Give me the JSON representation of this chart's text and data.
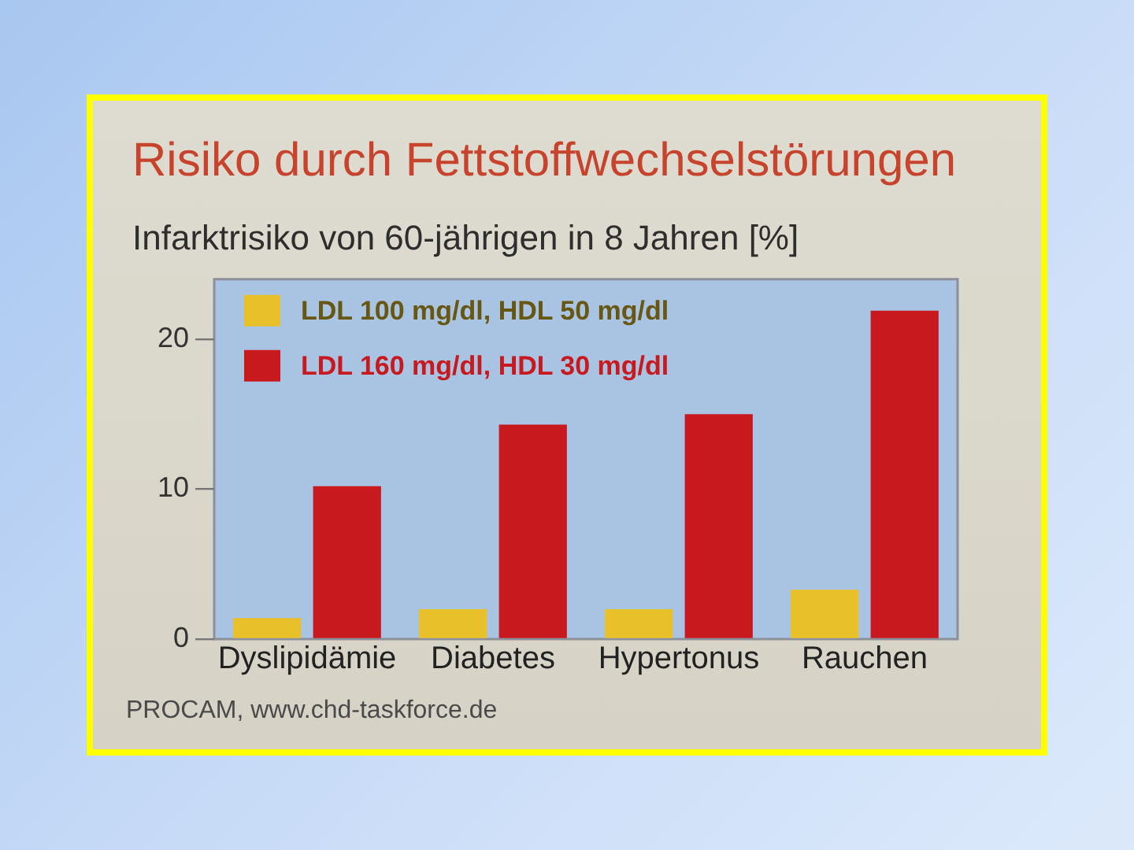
{
  "chart_data": {
    "type": "bar",
    "title": "Risiko durch Fettstoffwechselstörungen",
    "subtitle": "Infarktrisiko von 60-jährigen in 8 Jahren [%]",
    "categories": [
      "Dyslipidämie",
      "Diabetes",
      "Hypertonus",
      "Rauchen"
    ],
    "series": [
      {
        "name": "LDL 100 mg/dl, HDL 50 mg/dl",
        "color": "#e8c02a",
        "values": [
          1.4,
          2.0,
          2.0,
          3.3
        ]
      },
      {
        "name": "LDL 160 mg/dl, HDL 30 mg/dl",
        "color": "#c8191e",
        "values": [
          10.2,
          14.3,
          15.0,
          21.9
        ]
      }
    ],
    "ylim": [
      0,
      24
    ],
    "yticks": [
      0,
      10,
      20
    ],
    "grid": false,
    "legend": "top left",
    "annotations": [
      "PROCAM, www.chd-taskforce.de"
    ]
  }
}
